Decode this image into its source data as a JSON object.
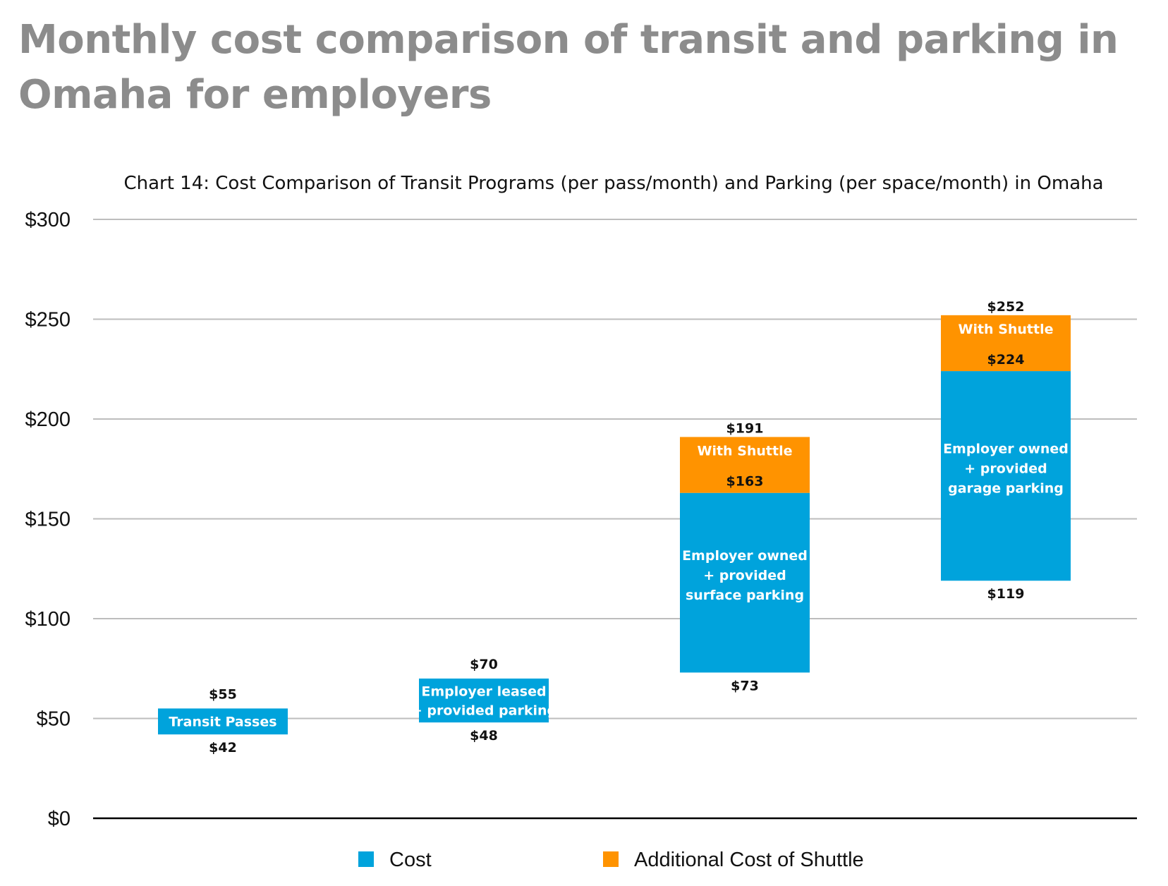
{
  "page_title": "Monthly cost comparison of transit and parking in Omaha for employers",
  "colors": {
    "cost": "#00a3dc",
    "shuttle": "#ff9300",
    "grid": "#bdbdbd",
    "axis": "#000000",
    "title": "#8c8c8c"
  },
  "chart_data": {
    "type": "bar",
    "subtype": "floating stacked range bar",
    "title": "Chart 14: Cost Comparison of Transit Programs (per pass/month) and Parking (per space/month) in Omaha",
    "ylim": [
      0,
      300
    ],
    "yticks": [
      0,
      50,
      100,
      150,
      200,
      250,
      300
    ],
    "ytick_labels": [
      "$0",
      "$50",
      "$100",
      "$150",
      "$200",
      "$250",
      "$300"
    ],
    "grid": true,
    "legend_position": "bottom",
    "series": [
      {
        "name": "Cost",
        "color": "#00a3dc"
      },
      {
        "name": "Additional Cost of Shuttle",
        "color": "#ff9300"
      }
    ],
    "bars": [
      {
        "low": 42,
        "high": 55,
        "shuttle_top": null,
        "low_label": "$42",
        "high_label": "$55",
        "shuttle_label": "",
        "bar_label": [
          "Transit Passes"
        ],
        "shuttle_bar_label": ""
      },
      {
        "low": 48,
        "high": 70,
        "shuttle_top": null,
        "low_label": "$48",
        "high_label": "$70",
        "shuttle_label": "",
        "bar_label": [
          "Employer leased",
          "+ provided parking"
        ],
        "shuttle_bar_label": ""
      },
      {
        "low": 73,
        "high": 163,
        "shuttle_top": 191,
        "low_label": "$73",
        "high_label": "$163",
        "shuttle_label": "$191",
        "bar_label": [
          "Employer owned",
          "+ provided",
          "surface parking"
        ],
        "shuttle_bar_label": "With Shuttle"
      },
      {
        "low": 119,
        "high": 224,
        "shuttle_top": 252,
        "low_label": "$119",
        "high_label": "$224",
        "shuttle_label": "$252",
        "bar_label": [
          "Employer owned",
          "+ provided",
          "garage parking"
        ],
        "shuttle_bar_label": "With Shuttle"
      }
    ]
  }
}
